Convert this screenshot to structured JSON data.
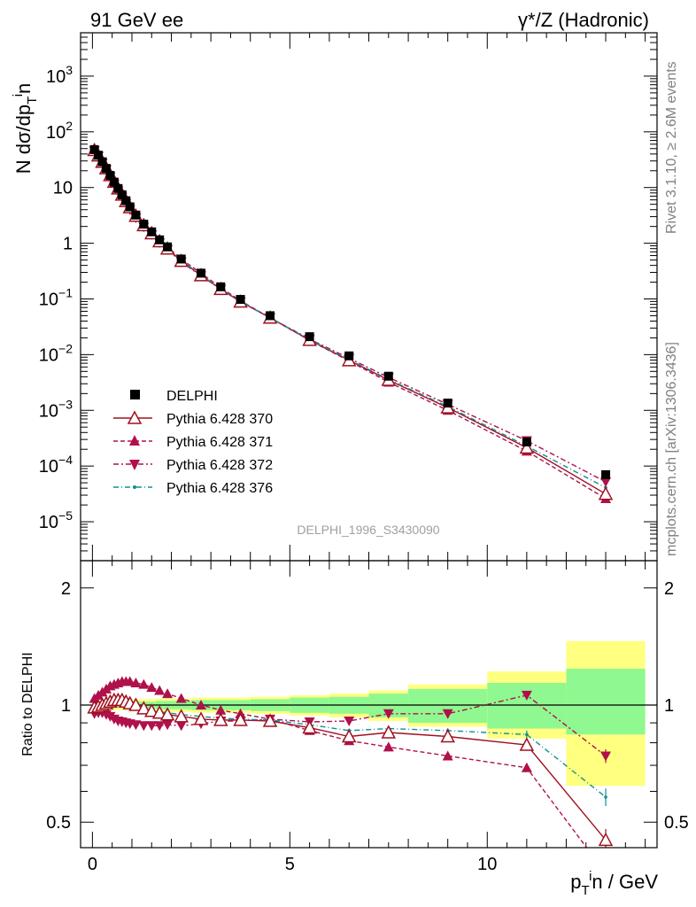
{
  "header": {
    "left": "91 GeV ee",
    "right_prefix": "γ*/Z",
    "right_suffix": "(Hadronic)"
  },
  "side_labels": {
    "rivet": "Rivet 3.1.10, ≥ 2.6M events",
    "mcplots": "mcplots.cern.ch [arXiv:1306.3436]"
  },
  "watermark": "DELPHI_1996_S3430090",
  "colors": {
    "data": "#000000",
    "p370": "#a01020",
    "p371": "#b0104c",
    "p372": "#b0104c",
    "p376": "#109090",
    "band_outer": "#ffff80",
    "band_inner": "#90f890"
  },
  "chart_data": [
    {
      "type": "scatter",
      "panel": "main",
      "ylabel_main": "N dσ/dp",
      "ylabel_sub": "T",
      "ylabel_sup": "i",
      "ylabel_end": "n",
      "yscale": "log",
      "ylim": [
        2e-06,
        6000
      ],
      "xlim": [
        -0.3,
        14.3
      ],
      "yticks": [
        {
          "value": 1e-05,
          "base": "10",
          "exp": "−5"
        },
        {
          "value": 0.0001,
          "base": "10",
          "exp": "−4"
        },
        {
          "value": 0.001,
          "base": "10",
          "exp": "−3"
        },
        {
          "value": 0.01,
          "base": "10",
          "exp": "−2"
        },
        {
          "value": 0.1,
          "base": "10",
          "exp": "−1"
        },
        {
          "value": 1,
          "base": "1",
          "exp": ""
        },
        {
          "value": 10,
          "base": "10",
          "exp": ""
        },
        {
          "value": 100,
          "base": "10",
          "exp": "2"
        },
        {
          "value": 1000,
          "base": "10",
          "exp": "3"
        }
      ],
      "x": [
        0.05,
        0.15,
        0.25,
        0.35,
        0.45,
        0.55,
        0.65,
        0.75,
        0.85,
        0.95,
        1.1,
        1.3,
        1.5,
        1.7,
        1.9,
        2.25,
        2.75,
        3.25,
        3.75,
        4.5,
        5.5,
        6.5,
        7.5,
        9.0,
        11.0,
        13.0
      ],
      "series": [
        {
          "name": "DELPHI",
          "key": "data",
          "marker": "square",
          "values": [
            48,
            38,
            29,
            22,
            16.5,
            12.5,
            9.6,
            7.4,
            5.8,
            4.5,
            3.2,
            2.2,
            1.6,
            1.15,
            0.86,
            0.52,
            0.29,
            0.165,
            0.098,
            0.05,
            0.021,
            0.0095,
            0.0041,
            0.00135,
            0.00027,
            7e-05
          ]
        },
        {
          "name": "Pythia 6.428 370",
          "key": "p370",
          "marker": "triangle-up-open",
          "line": "solid",
          "values": [
            47,
            37.5,
            28.8,
            22,
            16.6,
            12.6,
            9.6,
            7.4,
            5.7,
            4.4,
            3.1,
            2.1,
            1.5,
            1.08,
            0.8,
            0.48,
            0.265,
            0.15,
            0.089,
            0.046,
            0.0183,
            0.0079,
            0.0035,
            0.00112,
            0.000213,
            3.15e-05
          ]
        },
        {
          "name": "Pythia 6.428 371",
          "key": "p371",
          "marker": "triangle-up",
          "line": "dashed",
          "values": [
            50,
            40.5,
            31.5,
            24.5,
            18.5,
            14.0,
            10.6,
            8.2,
            6.3,
            4.8,
            3.4,
            2.3,
            1.65,
            1.18,
            0.86,
            0.52,
            0.29,
            0.16,
            0.093,
            0.046,
            0.018,
            0.0077,
            0.0032,
            0.001,
            0.000185,
            2.6e-05
          ]
        },
        {
          "name": "Pythia 6.428 372",
          "key": "p372",
          "marker": "triangle-down",
          "line": "dashdot",
          "values": [
            45.5,
            36.3,
            27.5,
            20.8,
            15.4,
            11.5,
            8.7,
            6.7,
            5.2,
            4.0,
            2.85,
            1.95,
            1.42,
            1.02,
            0.77,
            0.46,
            0.26,
            0.15,
            0.089,
            0.046,
            0.019,
            0.0086,
            0.0039,
            0.00128,
            0.000285,
            5.2e-05
          ]
        },
        {
          "name": "Pythia 6.428 376",
          "key": "p376",
          "marker": "dot",
          "line": "dashdot2",
          "values": [
            47.5,
            38,
            29.5,
            22.5,
            17.0,
            12.9,
            9.9,
            7.6,
            5.9,
            4.55,
            3.2,
            2.15,
            1.55,
            1.1,
            0.82,
            0.49,
            0.27,
            0.152,
            0.09,
            0.046,
            0.0186,
            0.0081,
            0.0036,
            0.00117,
            0.000228,
            4.1e-05
          ]
        }
      ]
    },
    {
      "type": "line",
      "panel": "ratio",
      "ylabel": "Ratio to DELPHI",
      "yscale": "log",
      "ylim": [
        0.43,
        2.35
      ],
      "xlim": [
        -0.3,
        14.3
      ],
      "xlabel_main": "p",
      "xlabel_sub": "T",
      "xlabel_sup": "i",
      "xlabel_end": "n / GeV",
      "xticks": [
        0,
        5,
        10
      ],
      "yticks": [
        0.5,
        1,
        2
      ],
      "bins": [
        [
          0,
          0.1
        ],
        [
          0.1,
          0.2
        ],
        [
          0.2,
          0.3
        ],
        [
          0.3,
          0.4
        ],
        [
          0.4,
          0.5
        ],
        [
          0.5,
          0.6
        ],
        [
          0.6,
          0.7
        ],
        [
          0.7,
          0.8
        ],
        [
          0.8,
          0.9
        ],
        [
          0.9,
          1.0
        ],
        [
          1.0,
          1.2
        ],
        [
          1.2,
          1.4
        ],
        [
          1.4,
          1.6
        ],
        [
          1.6,
          1.8
        ],
        [
          1.8,
          2.0
        ],
        [
          2.0,
          2.5
        ],
        [
          2.5,
          3.0
        ],
        [
          3.0,
          3.5
        ],
        [
          3.5,
          4.0
        ],
        [
          4.0,
          5.0
        ],
        [
          5.0,
          6.0
        ],
        [
          6.0,
          7.0
        ],
        [
          7.0,
          8.0
        ],
        [
          8.0,
          10.0
        ],
        [
          10.0,
          12.0
        ],
        [
          12.0,
          14.0
        ]
      ],
      "band_outer": [
        [
          0.97,
          1.03
        ],
        [
          0.97,
          1.03
        ],
        [
          0.97,
          1.03
        ],
        [
          0.97,
          1.03
        ],
        [
          0.97,
          1.03
        ],
        [
          0.97,
          1.03
        ],
        [
          0.97,
          1.03
        ],
        [
          0.97,
          1.03
        ],
        [
          0.97,
          1.03
        ],
        [
          0.97,
          1.03
        ],
        [
          0.965,
          1.035
        ],
        [
          0.965,
          1.035
        ],
        [
          0.965,
          1.035
        ],
        [
          0.96,
          1.04
        ],
        [
          0.96,
          1.04
        ],
        [
          0.96,
          1.04
        ],
        [
          0.955,
          1.045
        ],
        [
          0.955,
          1.045
        ],
        [
          0.955,
          1.045
        ],
        [
          0.95,
          1.05
        ],
        [
          0.94,
          1.06
        ],
        [
          0.93,
          1.07
        ],
        [
          0.91,
          1.09
        ],
        [
          0.88,
          1.13
        ],
        [
          0.82,
          1.22
        ],
        [
          0.62,
          1.46
        ]
      ],
      "band_inner": [
        [
          0.985,
          1.015
        ],
        [
          0.985,
          1.015
        ],
        [
          0.985,
          1.015
        ],
        [
          0.985,
          1.015
        ],
        [
          0.985,
          1.015
        ],
        [
          0.985,
          1.015
        ],
        [
          0.985,
          1.015
        ],
        [
          0.985,
          1.015
        ],
        [
          0.985,
          1.015
        ],
        [
          0.985,
          1.015
        ],
        [
          0.98,
          1.02
        ],
        [
          0.98,
          1.02
        ],
        [
          0.98,
          1.02
        ],
        [
          0.975,
          1.025
        ],
        [
          0.975,
          1.025
        ],
        [
          0.975,
          1.025
        ],
        [
          0.97,
          1.03
        ],
        [
          0.97,
          1.03
        ],
        [
          0.97,
          1.03
        ],
        [
          0.965,
          1.035
        ],
        [
          0.955,
          1.045
        ],
        [
          0.95,
          1.05
        ],
        [
          0.93,
          1.07
        ],
        [
          0.9,
          1.1
        ],
        [
          0.87,
          1.14
        ],
        [
          0.84,
          1.24
        ]
      ],
      "x": [
        0.05,
        0.15,
        0.25,
        0.35,
        0.45,
        0.55,
        0.65,
        0.75,
        0.85,
        0.95,
        1.1,
        1.3,
        1.5,
        1.7,
        1.9,
        2.25,
        2.75,
        3.25,
        3.75,
        4.5,
        5.5,
        6.5,
        7.5,
        9.0,
        11.0,
        13.0
      ],
      "series": [
        {
          "name": "Pythia 6.428 370",
          "key": "p370",
          "marker": "triangle-up-open",
          "line": "solid",
          "values": [
            0.985,
            0.99,
            1.0,
            1.01,
            1.02,
            1.03,
            1.03,
            1.03,
            1.02,
            1.01,
            1.0,
            0.98,
            0.965,
            0.955,
            0.945,
            0.935,
            0.92,
            0.915,
            0.915,
            0.91,
            0.875,
            0.83,
            0.85,
            0.83,
            0.79,
            0.45
          ],
          "errors": [
            0,
            0,
            0,
            0,
            0,
            0,
            0,
            0,
            0,
            0,
            0,
            0,
            0,
            0,
            0,
            0,
            0,
            0,
            0,
            0,
            0,
            0.01,
            0.01,
            0.012,
            0.02,
            0.03
          ]
        },
        {
          "name": "Pythia 6.428 371",
          "key": "p371",
          "marker": "triangle-up",
          "line": "dashed",
          "values": [
            1.04,
            1.06,
            1.08,
            1.1,
            1.12,
            1.13,
            1.14,
            1.15,
            1.15,
            1.15,
            1.14,
            1.13,
            1.11,
            1.09,
            1.07,
            1.04,
            1.0,
            0.97,
            0.95,
            0.92,
            0.86,
            0.81,
            0.78,
            0.74,
            0.69,
            0.37
          ],
          "errors": [
            0,
            0,
            0,
            0,
            0,
            0,
            0,
            0,
            0,
            0,
            0,
            0,
            0,
            0,
            0,
            0,
            0,
            0,
            0,
            0,
            0,
            0,
            0,
            0,
            0,
            0
          ]
        },
        {
          "name": "Pythia 6.428 372",
          "key": "p372",
          "marker": "triangle-down",
          "line": "dashdot",
          "values": [
            0.95,
            0.955,
            0.955,
            0.945,
            0.935,
            0.92,
            0.91,
            0.905,
            0.9,
            0.895,
            0.89,
            0.885,
            0.885,
            0.885,
            0.89,
            0.885,
            0.895,
            0.91,
            0.91,
            0.92,
            0.905,
            0.91,
            0.95,
            0.95,
            1.06,
            0.74
          ],
          "errors": [
            0,
            0,
            0,
            0,
            0,
            0,
            0,
            0,
            0,
            0,
            0,
            0,
            0,
            0,
            0,
            0,
            0,
            0,
            0,
            0,
            0,
            0,
            0,
            0.01,
            0.015,
            0.03
          ]
        },
        {
          "name": "Pythia 6.428 376",
          "key": "p376",
          "marker": "dot",
          "line": "dashdot2",
          "values": [
            0.99,
            1.0,
            1.015,
            1.025,
            1.03,
            1.035,
            1.035,
            1.03,
            1.02,
            1.01,
            1.0,
            0.98,
            0.97,
            0.96,
            0.955,
            0.945,
            0.935,
            0.925,
            0.92,
            0.915,
            0.89,
            0.86,
            0.87,
            0.86,
            0.84,
            0.58
          ],
          "errors": [
            0,
            0,
            0,
            0,
            0,
            0,
            0,
            0,
            0,
            0,
            0,
            0,
            0,
            0,
            0,
            0,
            0,
            0,
            0,
            0,
            0,
            0.01,
            0.01,
            0.012,
            0.02,
            0.03
          ]
        }
      ]
    }
  ]
}
